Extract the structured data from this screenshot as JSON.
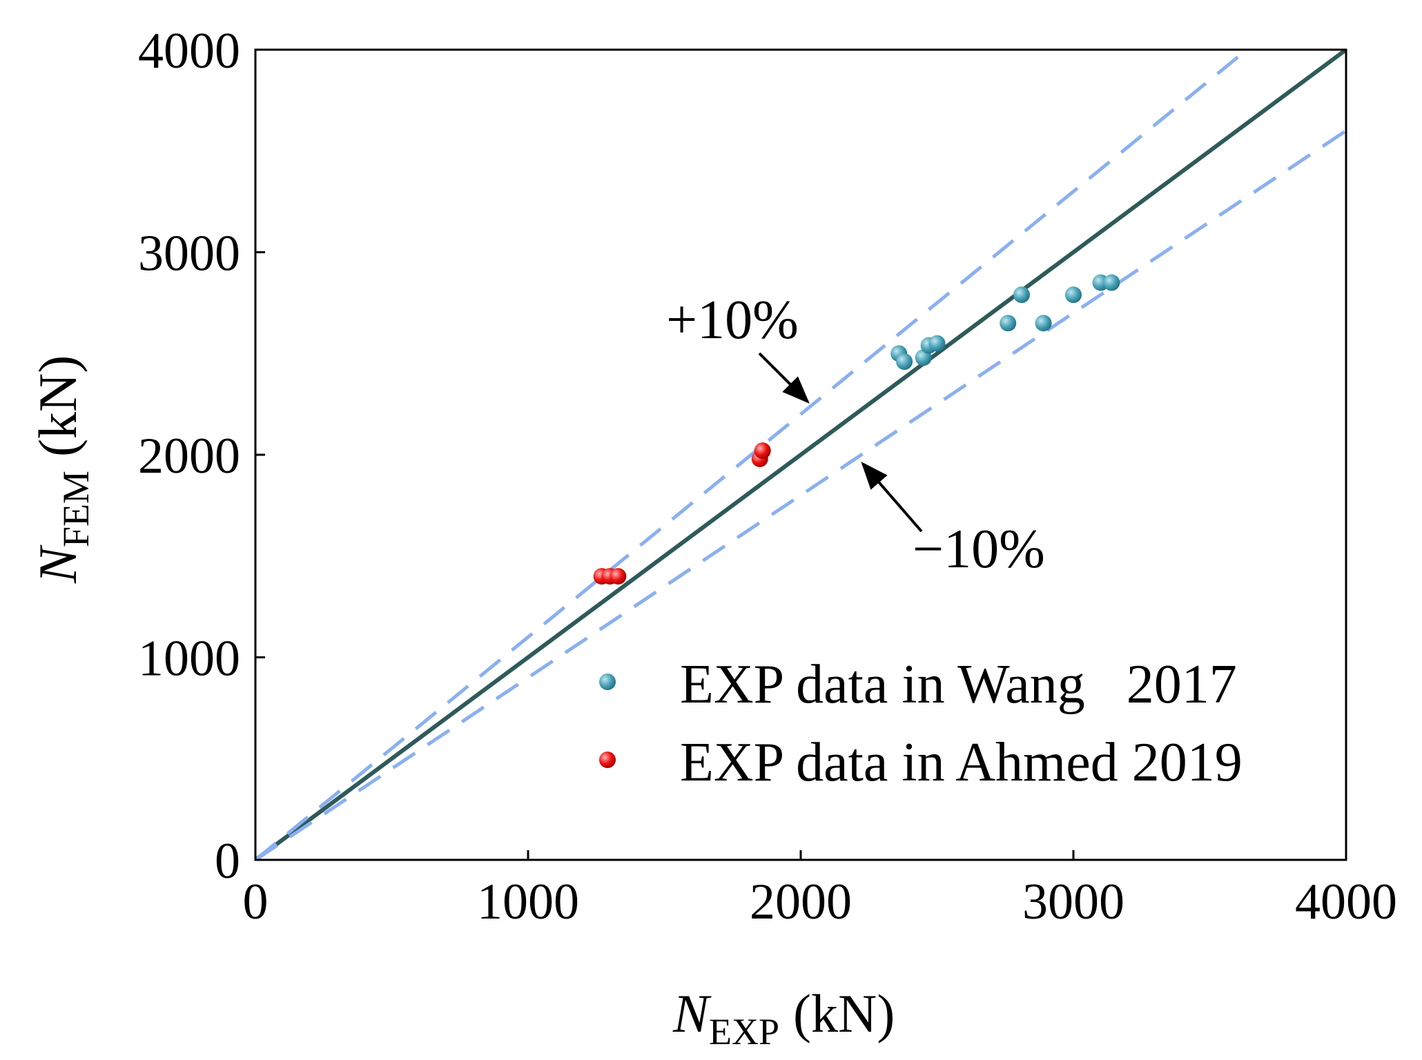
{
  "chart_data": {
    "type": "scatter",
    "xlabel": {
      "symbol": "N",
      "subscript": "EXP",
      "unit": "(kN)"
    },
    "ylabel": {
      "symbol": "N",
      "subscript": "FEM",
      "unit": "(kN)"
    },
    "xlim": [
      0,
      4000
    ],
    "ylim": [
      0,
      4000
    ],
    "x_ticks": [
      0,
      1000,
      2000,
      3000,
      4000
    ],
    "y_ticks": [
      0,
      1000,
      2000,
      3000,
      4000
    ],
    "x_tick_labels": [
      "0",
      "1000",
      "2000",
      "3000",
      "4000"
    ],
    "y_tick_labels": [
      "0",
      "1000",
      "2000",
      "3000",
      "4000"
    ],
    "grid": false,
    "legend_position": "bottom-right",
    "reference_lines": [
      {
        "name": "y = x",
        "slope": 1.0,
        "style": "solid",
        "color": "#2f5a5a"
      },
      {
        "name": "+10%",
        "slope": 1.1,
        "style": "dashed",
        "color": "#8ab0f0"
      },
      {
        "name": "-10%",
        "slope": 0.9,
        "style": "dashed",
        "color": "#8ab0f0"
      }
    ],
    "annotations": [
      {
        "text": "+10%",
        "arrow_to": [
          2020,
          2250
        ]
      },
      {
        "text": "−10%",
        "arrow_to": [
          2200,
          1950
        ]
      }
    ],
    "series": [
      {
        "name": "EXP data in Wang   2017",
        "color": "#4aa3b8",
        "points": [
          [
            2360,
            2500
          ],
          [
            2380,
            2460
          ],
          [
            2450,
            2480
          ],
          [
            2470,
            2540
          ],
          [
            2500,
            2550
          ],
          [
            2760,
            2650
          ],
          [
            2810,
            2790
          ],
          [
            2890,
            2650
          ],
          [
            3000,
            2790
          ],
          [
            3100,
            2850
          ],
          [
            3140,
            2850
          ]
        ]
      },
      {
        "name": "EXP data in Ahmed 2019",
        "color": "#ee1111",
        "points": [
          [
            1270,
            1400
          ],
          [
            1300,
            1400
          ],
          [
            1330,
            1400
          ],
          [
            1850,
            1980
          ],
          [
            1860,
            2020
          ]
        ]
      }
    ]
  }
}
